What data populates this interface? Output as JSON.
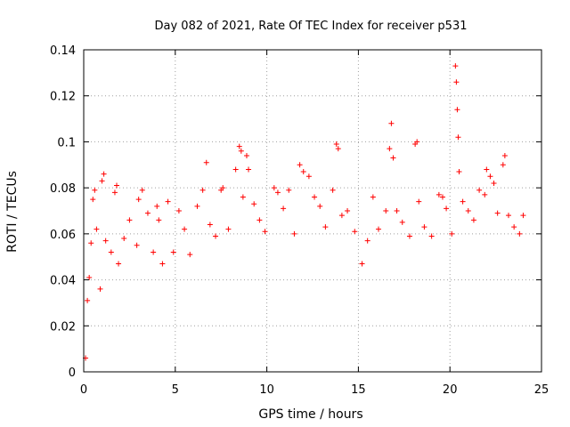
{
  "chart_data": {
    "type": "scatter",
    "title": "Day 082 of 2021, Rate Of TEC Index for receiver p531",
    "xlabel": "GPS time / hours",
    "ylabel": "ROTI / TECUs",
    "xlim": [
      0,
      25
    ],
    "ylim": [
      0,
      0.14
    ],
    "x_ticks": [
      0,
      5,
      10,
      15,
      20,
      25
    ],
    "x_tick_labels": [
      "0",
      "5",
      "10",
      "15",
      "20",
      "25"
    ],
    "y_ticks": [
      0,
      0.02,
      0.04,
      0.06,
      0.08,
      0.1,
      0.12,
      0.14
    ],
    "y_tick_labels": [
      "0",
      "0.02",
      "0.04",
      "0.06",
      "0.08",
      "0.1",
      "0.12",
      "0.14"
    ],
    "grid": true,
    "marker": "+",
    "color": "#ff0000",
    "series": [
      {
        "name": "ROTI",
        "points": [
          [
            0.1,
            0.006
          ],
          [
            0.2,
            0.031
          ],
          [
            0.3,
            0.041
          ],
          [
            0.4,
            0.056
          ],
          [
            0.5,
            0.075
          ],
          [
            0.6,
            0.079
          ],
          [
            0.7,
            0.062
          ],
          [
            0.9,
            0.036
          ],
          [
            1.0,
            0.083
          ],
          [
            1.1,
            0.086
          ],
          [
            1.2,
            0.057
          ],
          [
            1.5,
            0.052
          ],
          [
            1.7,
            0.078
          ],
          [
            1.8,
            0.081
          ],
          [
            1.9,
            0.047
          ],
          [
            2.2,
            0.058
          ],
          [
            2.5,
            0.066
          ],
          [
            2.9,
            0.055
          ],
          [
            3.0,
            0.075
          ],
          [
            3.2,
            0.079
          ],
          [
            3.5,
            0.069
          ],
          [
            3.8,
            0.052
          ],
          [
            4.0,
            0.072
          ],
          [
            4.1,
            0.066
          ],
          [
            4.3,
            0.047
          ],
          [
            4.6,
            0.074
          ],
          [
            4.9,
            0.052
          ],
          [
            5.2,
            0.07
          ],
          [
            5.5,
            0.062
          ],
          [
            5.8,
            0.051
          ],
          [
            6.2,
            0.072
          ],
          [
            6.5,
            0.079
          ],
          [
            6.7,
            0.091
          ],
          [
            6.9,
            0.064
          ],
          [
            7.2,
            0.059
          ],
          [
            7.5,
            0.079
          ],
          [
            7.6,
            0.08
          ],
          [
            7.9,
            0.062
          ],
          [
            8.3,
            0.088
          ],
          [
            8.5,
            0.098
          ],
          [
            8.6,
            0.096
          ],
          [
            8.7,
            0.076
          ],
          [
            8.9,
            0.094
          ],
          [
            9.0,
            0.088
          ],
          [
            9.3,
            0.073
          ],
          [
            9.6,
            0.066
          ],
          [
            9.9,
            0.061
          ],
          [
            10.4,
            0.08
          ],
          [
            10.6,
            0.078
          ],
          [
            10.9,
            0.071
          ],
          [
            11.2,
            0.079
          ],
          [
            11.5,
            0.06
          ],
          [
            11.8,
            0.09
          ],
          [
            12.0,
            0.087
          ],
          [
            12.3,
            0.085
          ],
          [
            12.6,
            0.076
          ],
          [
            12.9,
            0.072
          ],
          [
            13.2,
            0.063
          ],
          [
            13.6,
            0.079
          ],
          [
            13.8,
            0.099
          ],
          [
            13.9,
            0.097
          ],
          [
            14.1,
            0.068
          ],
          [
            14.4,
            0.07
          ],
          [
            14.8,
            0.061
          ],
          [
            15.2,
            0.047
          ],
          [
            15.5,
            0.057
          ],
          [
            15.8,
            0.076
          ],
          [
            16.1,
            0.062
          ],
          [
            16.5,
            0.07
          ],
          [
            16.7,
            0.097
          ],
          [
            16.8,
            0.108
          ],
          [
            16.9,
            0.093
          ],
          [
            17.1,
            0.07
          ],
          [
            17.4,
            0.065
          ],
          [
            17.8,
            0.059
          ],
          [
            18.1,
            0.099
          ],
          [
            18.2,
            0.1
          ],
          [
            18.3,
            0.074
          ],
          [
            18.6,
            0.063
          ],
          [
            19.0,
            0.059
          ],
          [
            19.4,
            0.077
          ],
          [
            19.6,
            0.076
          ],
          [
            19.8,
            0.071
          ],
          [
            20.1,
            0.06
          ],
          [
            20.3,
            0.133
          ],
          [
            20.35,
            0.126
          ],
          [
            20.4,
            0.114
          ],
          [
            20.45,
            0.102
          ],
          [
            20.5,
            0.087
          ],
          [
            20.7,
            0.074
          ],
          [
            21.0,
            0.07
          ],
          [
            21.3,
            0.066
          ],
          [
            21.6,
            0.079
          ],
          [
            21.9,
            0.077
          ],
          [
            22.0,
            0.088
          ],
          [
            22.2,
            0.085
          ],
          [
            22.4,
            0.082
          ],
          [
            22.6,
            0.069
          ],
          [
            22.9,
            0.09
          ],
          [
            23.0,
            0.094
          ],
          [
            23.2,
            0.068
          ],
          [
            23.5,
            0.063
          ],
          [
            23.8,
            0.06
          ],
          [
            24.0,
            0.068
          ]
        ]
      }
    ]
  }
}
